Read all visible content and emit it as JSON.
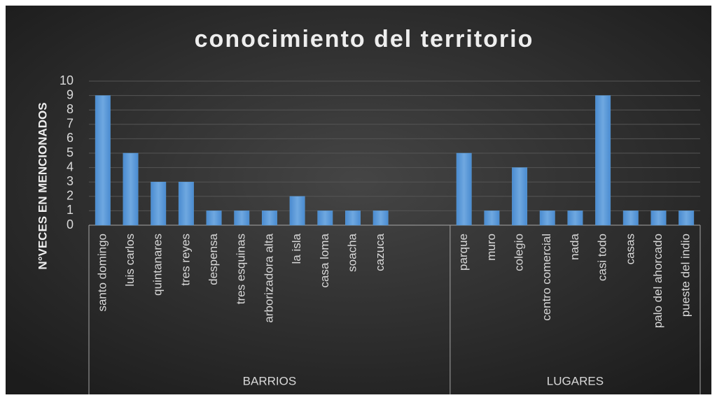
{
  "chart_data": {
    "type": "bar",
    "title": "conocimiento del territorio",
    "y_label": "N°VECES EN MENCIONADOS",
    "categories": [
      "santo domingo",
      "luis carlos",
      "quintanares",
      "tres  reyes",
      "despensa",
      "tres esquinas",
      "arborizadora alta",
      "la isla",
      "casa loma",
      "soacha",
      "cazuca",
      null,
      null,
      "parque",
      "muro",
      "colegio",
      "centro comercial",
      "nada",
      "casi todo",
      "casas",
      "palo del ahorcado",
      "pueste del indio"
    ],
    "values": [
      9,
      5,
      3,
      3,
      1,
      1,
      1,
      2,
      1,
      1,
      1,
      null,
      null,
      5,
      1,
      4,
      1,
      1,
      9,
      1,
      1,
      1
    ],
    "groups": [
      {
        "name": "BARRIOS",
        "count": 13
      },
      {
        "name": "LUGARES",
        "count": 9
      }
    ],
    "color": "#5b9bd5",
    "ylim": [
      0,
      10
    ],
    "yticks": [
      0,
      1,
      2,
      3,
      4,
      5,
      6,
      7,
      8,
      9,
      10
    ],
    "grid": true
  }
}
